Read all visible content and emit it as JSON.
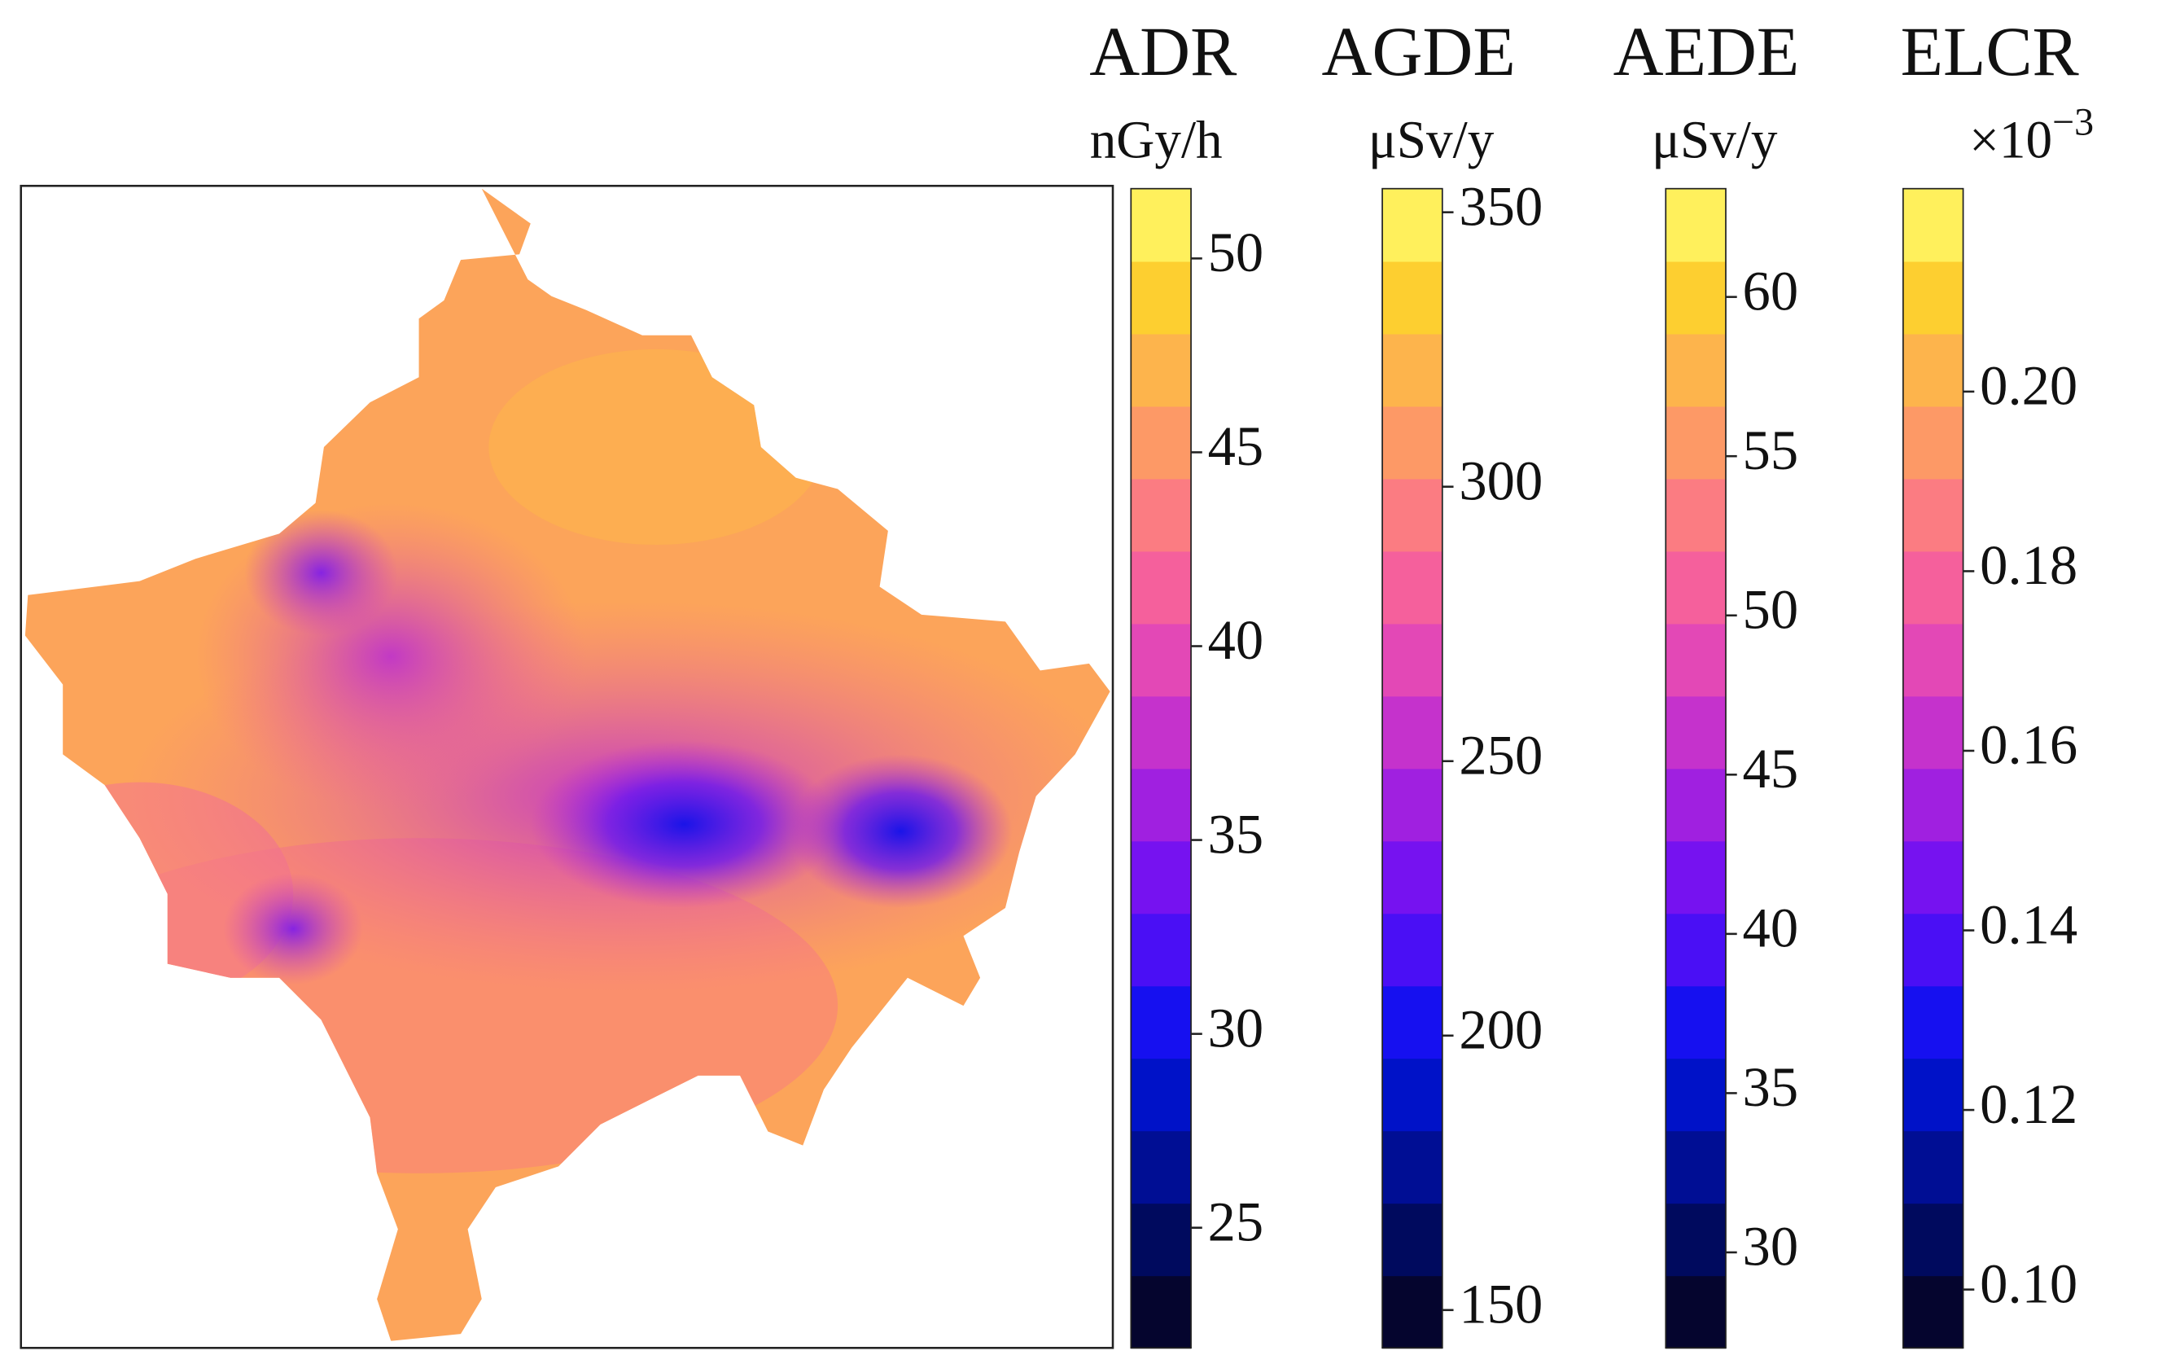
{
  "colormap": [
    "#05052e",
    "#000a5e",
    "#000e94",
    "#0012c8",
    "#1610f0",
    "#4a0ff5",
    "#7612f0",
    "#a020e0",
    "#c532cc",
    "#e348b6",
    "#f5609c",
    "#fb7c82",
    "#fd9966",
    "#fdb44c",
    "#fdcf30",
    "#fff05c"
  ],
  "chart_data": [
    {
      "type": "colorbar",
      "title": "ADR",
      "unit": "nGy/h",
      "ylim": [
        21.9,
        51.8
      ],
      "yticks": [
        25,
        30,
        35,
        40,
        45,
        50
      ]
    },
    {
      "type": "colorbar",
      "title": "AGDE",
      "unit": "μSv/y",
      "ylim": [
        143.1,
        354.3
      ],
      "yticks": [
        150,
        200,
        250,
        300,
        350
      ]
    },
    {
      "type": "colorbar",
      "title": "AEDE",
      "unit": "μSv/y",
      "ylim": [
        27.0,
        63.4
      ],
      "yticks": [
        30,
        35,
        40,
        45,
        50,
        55,
        60
      ]
    },
    {
      "type": "colorbar",
      "title": "ELCR",
      "unit": "×10",
      "unit_superscript": "−3",
      "ylim": [
        0.0935,
        0.2226
      ],
      "yticks": [
        {
          "value": 0.1,
          "label": "0.10"
        },
        0.12,
        0.14,
        0.16,
        0.18,
        {
          "value": 0.2,
          "label": "0.20"
        }
      ]
    }
  ]
}
